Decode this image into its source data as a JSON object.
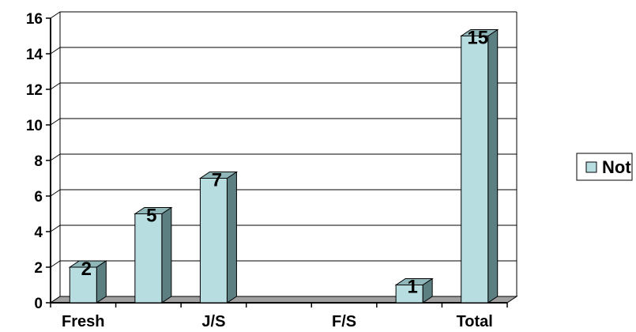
{
  "chart_data": {
    "type": "bar",
    "categories": [
      "Fresh",
      "",
      "J/S",
      "",
      "F/S",
      "",
      "Total"
    ],
    "series": [
      {
        "name": "Not",
        "values": [
          2,
          5,
          7,
          0,
          0,
          1,
          15
        ]
      }
    ],
    "data_labels": [
      "2",
      "5",
      "7",
      "",
      "",
      "1",
      "15"
    ],
    "y_ticks": [
      0,
      2,
      4,
      6,
      8,
      10,
      12,
      14,
      16
    ],
    "ylim": [
      0,
      16
    ],
    "grid": true,
    "legend": "right",
    "colors": {
      "bar_front": "#b7dde0",
      "bar_side": "#5c7f82",
      "bar_top": "#8fb6b9",
      "floor": "#a0a0a0",
      "grid": "#000000"
    }
  }
}
